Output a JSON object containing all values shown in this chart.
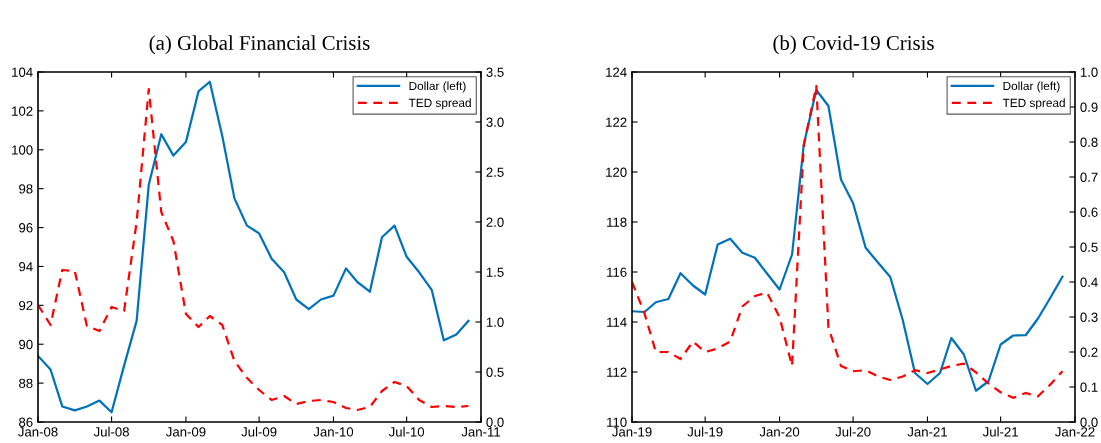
{
  "chart_data": [
    {
      "type": "line",
      "title": "(a) Global Financial Crisis",
      "legend": "top right",
      "marker": "none",
      "grid": false,
      "x": [
        "2008-01",
        "2008-02",
        "2008-03",
        "2008-04",
        "2008-05",
        "2008-06",
        "2008-07",
        "2008-08",
        "2008-09",
        "2008-10",
        "2008-11",
        "2008-12",
        "2009-01",
        "2009-02",
        "2009-03",
        "2009-04",
        "2009-05",
        "2009-06",
        "2009-07",
        "2009-08",
        "2009-09",
        "2009-10",
        "2009-11",
        "2009-12",
        "2010-01",
        "2010-02",
        "2010-03",
        "2010-04",
        "2010-05",
        "2010-06",
        "2010-07",
        "2010-08",
        "2010-09",
        "2010-10",
        "2010-11",
        "2010-12"
      ],
      "series": [
        {
          "name": "Dollar (left)",
          "color": "#0072bd",
          "line_style": "solid",
          "values": [
            89.4,
            88.7,
            86.8,
            86.6,
            86.8,
            87.1,
            86.5,
            88.9,
            91.2,
            98.2,
            100.8,
            99.7,
            100.4,
            103.0,
            103.5,
            100.7,
            97.5,
            96.1,
            95.7,
            94.4,
            93.7,
            92.3,
            91.8,
            92.3,
            92.5,
            93.9,
            93.2,
            92.7,
            95.5,
            96.1,
            94.5,
            93.7,
            92.8,
            90.2,
            90.5,
            91.2
          ]
        },
        {
          "name": "TED spread",
          "color": "#ff0000",
          "line_style": "dashed",
          "axis": "y2",
          "values": [
            1.17,
            0.97,
            1.52,
            1.51,
            0.96,
            0.91,
            1.15,
            1.11,
            2.0,
            3.33,
            2.1,
            1.81,
            1.08,
            0.95,
            1.06,
            0.97,
            0.61,
            0.44,
            0.32,
            0.22,
            0.26,
            0.18,
            0.21,
            0.22,
            0.2,
            0.14,
            0.12,
            0.15,
            0.31,
            0.4,
            0.36,
            0.22,
            0.15,
            0.16,
            0.15,
            0.16
          ]
        }
      ],
      "xlim": [
        "2008-01",
        "2011-01"
      ],
      "xticks": [
        {
          "value": "2008-01",
          "label": "Jan-08"
        },
        {
          "value": "2008-07",
          "label": "Jul-08"
        },
        {
          "value": "2009-01",
          "label": "Jan-09"
        },
        {
          "value": "2009-07",
          "label": "Jul-09"
        },
        {
          "value": "2010-01",
          "label": "Jan-10"
        },
        {
          "value": "2010-07",
          "label": "Jul-10"
        },
        {
          "value": "2011-01",
          "label": "Jan-11"
        }
      ],
      "ylim": [
        86,
        104
      ],
      "yticks": [
        86,
        88,
        90,
        92,
        94,
        96,
        98,
        100,
        102,
        104
      ],
      "y2lim": [
        0,
        3.5
      ],
      "y2ticks": [
        {
          "value": 0,
          "label": "0.0"
        },
        {
          "value": 0.5,
          "label": "0.5"
        },
        {
          "value": 1,
          "label": "1.0"
        },
        {
          "value": 1.5,
          "label": "1.5"
        },
        {
          "value": 2,
          "label": "2.0"
        },
        {
          "value": 2.5,
          "label": "2.5"
        },
        {
          "value": 3,
          "label": "3.0"
        },
        {
          "value": 3.5,
          "label": "3.5"
        }
      ]
    },
    {
      "type": "line",
      "title": "(b) Covid-19 Crisis",
      "legend": "top right",
      "marker": "none",
      "grid": false,
      "x": [
        "2019-01",
        "2019-02",
        "2019-03",
        "2019-04",
        "2019-05",
        "2019-06",
        "2019-07",
        "2019-08",
        "2019-09",
        "2019-10",
        "2019-11",
        "2019-12",
        "2020-01",
        "2020-02",
        "2020-03",
        "2020-04",
        "2020-05",
        "2020-06",
        "2020-07",
        "2020-08",
        "2020-09",
        "2020-10",
        "2020-11",
        "2020-12",
        "2021-01",
        "2021-02",
        "2021-03",
        "2021-04",
        "2021-05",
        "2021-06",
        "2021-07",
        "2021-08",
        "2021-09",
        "2021-10",
        "2021-11",
        "2021-12"
      ],
      "series": [
        {
          "name": "Dollar (left)",
          "color": "#0072bd",
          "line_style": "solid",
          "values": [
            114.43,
            114.4,
            114.79,
            114.92,
            115.95,
            115.46,
            115.1,
            117.1,
            117.33,
            116.77,
            116.57,
            115.94,
            115.3,
            116.7,
            121.1,
            123.28,
            122.64,
            119.7,
            118.75,
            116.97,
            116.37,
            115.8,
            114.07,
            111.96,
            111.52,
            111.96,
            113.36,
            112.7,
            111.25,
            111.63,
            113.1,
            113.46,
            113.47,
            114.13,
            114.97,
            115.81
          ]
        },
        {
          "name": "TED spread",
          "color": "#ff0000",
          "line_style": "dashed",
          "axis": "y2",
          "values": [
            0.4,
            0.31,
            0.2,
            0.2,
            0.18,
            0.23,
            0.2,
            0.21,
            0.23,
            0.33,
            0.36,
            0.37,
            0.3,
            0.16,
            0.79,
            0.96,
            0.27,
            0.16,
            0.145,
            0.148,
            0.13,
            0.12,
            0.13,
            0.148,
            0.14,
            0.15,
            0.16,
            0.167,
            0.142,
            0.11,
            0.085,
            0.069,
            0.083,
            0.073,
            0.107,
            0.145
          ]
        }
      ],
      "xlim": [
        "2019-01",
        "2022-01"
      ],
      "xticks": [
        {
          "value": "2019-01",
          "label": "Jan-19"
        },
        {
          "value": "2019-07",
          "label": "Jul-19"
        },
        {
          "value": "2020-01",
          "label": "Jan-20"
        },
        {
          "value": "2020-07",
          "label": "Jul-20"
        },
        {
          "value": "2021-01",
          "label": "Jan-21"
        },
        {
          "value": "2021-07",
          "label": "Jul-21"
        },
        {
          "value": "2022-01",
          "label": "Jan-22"
        }
      ],
      "ylim": [
        110,
        124
      ],
      "yticks": [
        110,
        112,
        114,
        116,
        118,
        120,
        122,
        124
      ],
      "y2lim": [
        0,
        1
      ],
      "y2ticks": [
        {
          "value": 0,
          "label": "0.0"
        },
        {
          "value": 0.1,
          "label": "0.1"
        },
        {
          "value": 0.2,
          "label": "0.2"
        },
        {
          "value": 0.3,
          "label": "0.3"
        },
        {
          "value": 0.4,
          "label": "0.4"
        },
        {
          "value": 0.5,
          "label": "0.5"
        },
        {
          "value": 0.6,
          "label": "0.6"
        },
        {
          "value": 0.7,
          "label": "0.7"
        },
        {
          "value": 0.8,
          "label": "0.8"
        },
        {
          "value": 0.9,
          "label": "0.9"
        },
        {
          "value": 1,
          "label": "1.0"
        }
      ]
    }
  ]
}
